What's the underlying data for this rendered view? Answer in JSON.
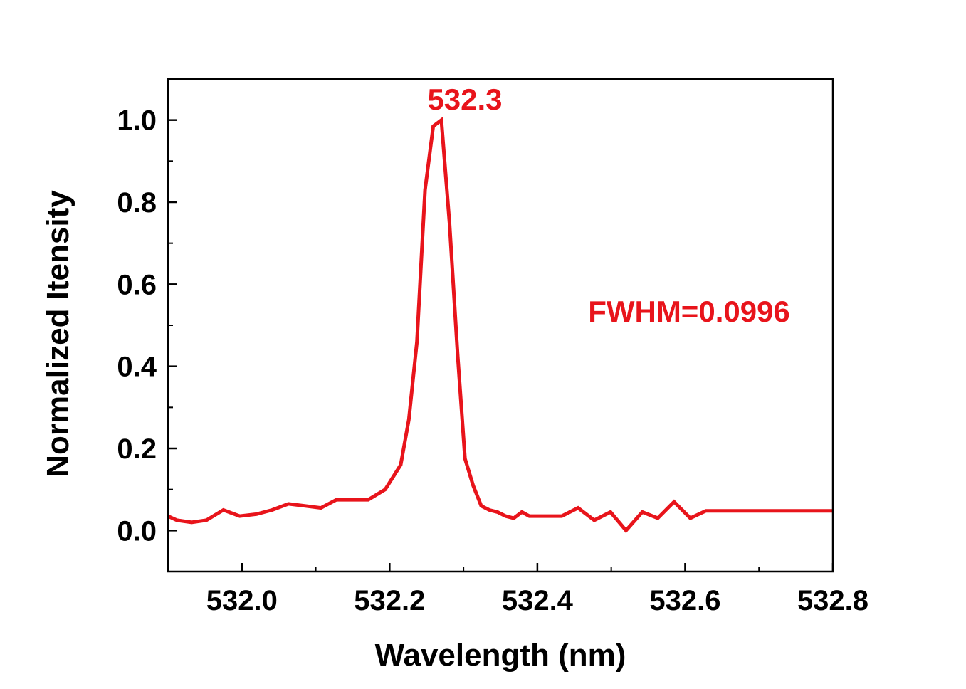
{
  "colors": {
    "series": "#e8141b",
    "axis": "#000000",
    "background": "#ffffff"
  },
  "chart_data": {
    "type": "line",
    "title": "",
    "xlabel": "Wavelength (nm)",
    "ylabel": "Normalized Itensity",
    "xlim": [
      531.9,
      532.8
    ],
    "ylim": [
      -0.1,
      1.1
    ],
    "x_ticks": [
      532.0,
      532.2,
      532.4,
      532.6,
      532.8
    ],
    "x_tick_labels": [
      "532.0",
      "532.2",
      "532.4",
      "532.6",
      "532.8"
    ],
    "y_ticks": [
      0.0,
      0.2,
      0.4,
      0.6,
      0.8,
      1.0
    ],
    "y_tick_labels": [
      "0.0",
      "0.2",
      "0.4",
      "0.6",
      "0.8",
      "1.0"
    ],
    "y_minor_ticks": [
      -0.1,
      0.1,
      0.3,
      0.5,
      0.7,
      0.9
    ],
    "x_minor_ticks": [
      531.9,
      532.1,
      532.3,
      532.5,
      532.7
    ],
    "grid": false,
    "legend": "none",
    "series": [
      {
        "x": [
          531.9,
          531.912,
          531.932,
          531.952,
          531.975,
          531.997,
          532.02,
          532.041,
          532.063,
          532.085,
          532.107,
          532.128,
          532.15,
          532.171,
          532.194,
          532.215,
          532.226,
          532.237,
          532.248,
          532.259,
          532.27,
          532.281,
          532.292,
          532.302,
          532.313,
          532.324,
          532.335,
          532.346,
          532.357,
          532.368,
          532.379,
          532.389,
          532.412,
          532.433,
          532.455,
          532.477,
          532.499,
          532.52,
          532.542,
          532.563,
          532.585,
          532.607,
          532.628,
          532.65,
          532.672,
          532.692,
          532.715,
          532.737,
          532.758,
          532.78,
          532.8
        ],
        "y": [
          0.035,
          0.025,
          0.02,
          0.025,
          0.05,
          0.035,
          0.04,
          0.05,
          0.065,
          0.06,
          0.055,
          0.075,
          0.075,
          0.075,
          0.1,
          0.16,
          0.27,
          0.46,
          0.83,
          0.985,
          1.0,
          0.75,
          0.43,
          0.175,
          0.11,
          0.06,
          0.05,
          0.045,
          0.035,
          0.03,
          0.045,
          0.035,
          0.035,
          0.035,
          0.055,
          0.025,
          0.045,
          0.0,
          0.045,
          0.03,
          0.07,
          0.03,
          0.048,
          0.048,
          0.048,
          0.048,
          0.048,
          0.048,
          0.048,
          0.048,
          0.048
        ]
      }
    ],
    "annotations": [
      {
        "text": "532.3",
        "x": 532.325,
        "y": 1.04
      },
      {
        "text": "FWHM=0.0996",
        "x": 532.65,
        "y": 0.53
      }
    ]
  }
}
